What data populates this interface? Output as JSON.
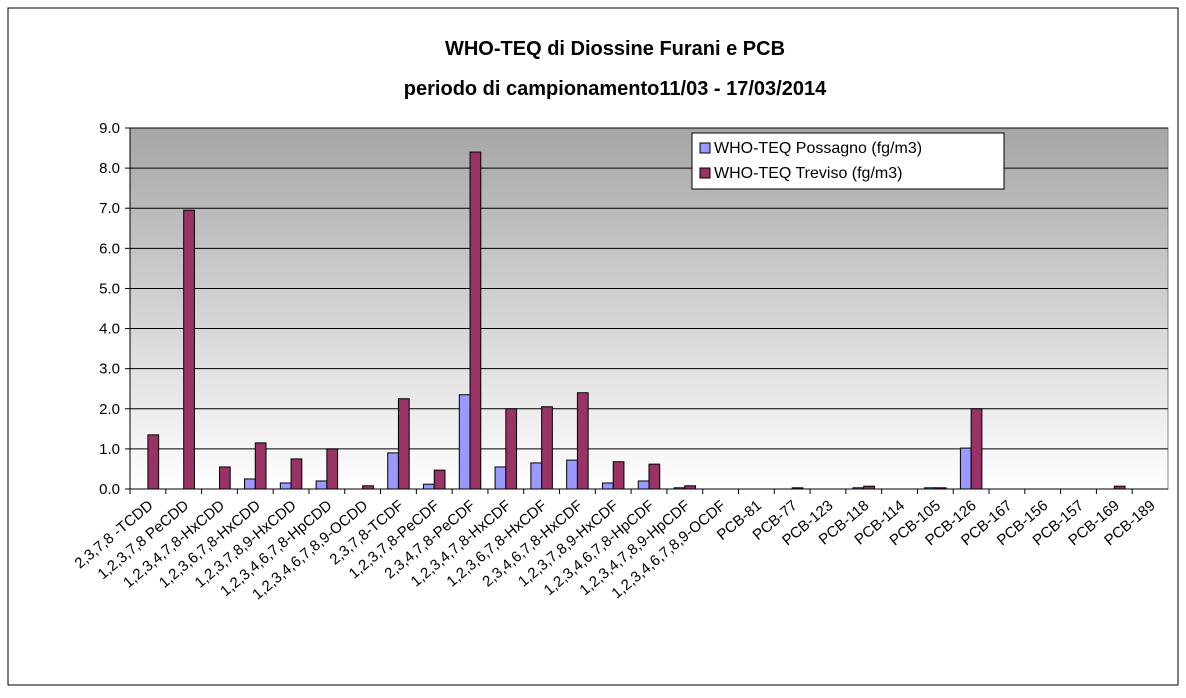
{
  "chart_data": {
    "type": "bar",
    "title": "WHO-TEQ di Diossine Furani e PCB",
    "subtitle": "periodo di campionamento11/03 - 17/03/2014",
    "categories": [
      "2,3,7,8 -TCDD",
      "1,2,3,7,8 PeCDD",
      "1,2,3,4,7,8-HxCDD",
      "1,2,3,6,7,8-HxCDD",
      "1,2,3,7,8,9-HxCDD",
      "1,2,3,4,6,7,8-HpCDD",
      "1,2,3,4,6,7,8,9-OCDD",
      "2,3,7,8-TCDF",
      "1,2,3,7,8-PeCDF",
      "2,3,4,7,8-PeCDF",
      "1,2,3,4,7,8-HxCDF",
      "1,2,3,6,7,8-HxCDF",
      "2,3,4,6,7,8-HxCDF",
      "1,2,3,7,8,9-HxCDF",
      "1,2,3,4,6,7,8-HpCDF",
      "1,2,3,4,7,8,9-HpCDF",
      "1,2,3,4,6,7,8,9-OCDF",
      "PCB-81",
      "PCB-77",
      "PCB-123",
      "PCB-118",
      "PCB-114",
      "PCB-105",
      "PCB-126",
      "PCB-167",
      "PCB-156",
      "PCB-157",
      "PCB-169",
      "PCB-189"
    ],
    "series": [
      {
        "name": "WHO-TEQ Possagno (fg/m3)",
        "color": "#9999ff",
        "values": [
          0,
          0,
          0,
          0.25,
          0.15,
          0.2,
          0,
          0.9,
          0.12,
          2.35,
          0.55,
          0.65,
          0.72,
          0.15,
          0.2,
          0.03,
          0,
          0,
          0,
          0,
          0.03,
          0,
          0.03,
          1.02,
          0,
          0,
          0,
          0,
          0
        ]
      },
      {
        "name": "WHO-TEQ Treviso (fg/m3)",
        "color": "#993366",
        "values": [
          1.35,
          6.95,
          0.55,
          1.15,
          0.75,
          1.0,
          0.08,
          2.25,
          0.47,
          8.4,
          2.0,
          2.05,
          2.4,
          0.68,
          0.62,
          0.08,
          0,
          0,
          0.03,
          0,
          0.07,
          0,
          0.03,
          2.0,
          0,
          0,
          0,
          0.07,
          0
        ]
      }
    ],
    "ylim": [
      0,
      9
    ],
    "yticks": [
      {
        "value": 0,
        "label": "0.0"
      },
      {
        "value": 1,
        "label": "1.0"
      },
      {
        "value": 2,
        "label": "2.0"
      },
      {
        "value": 3,
        "label": "3.0"
      },
      {
        "value": 4,
        "label": "4.0"
      },
      {
        "value": 5,
        "label": "5.0"
      },
      {
        "value": 6,
        "label": "6.0"
      },
      {
        "value": 7,
        "label": "7.0"
      },
      {
        "value": 8,
        "label": "8.0"
      },
      {
        "value": 9,
        "label": "9.0"
      }
    ],
    "grid": true,
    "legend": "top-right"
  }
}
